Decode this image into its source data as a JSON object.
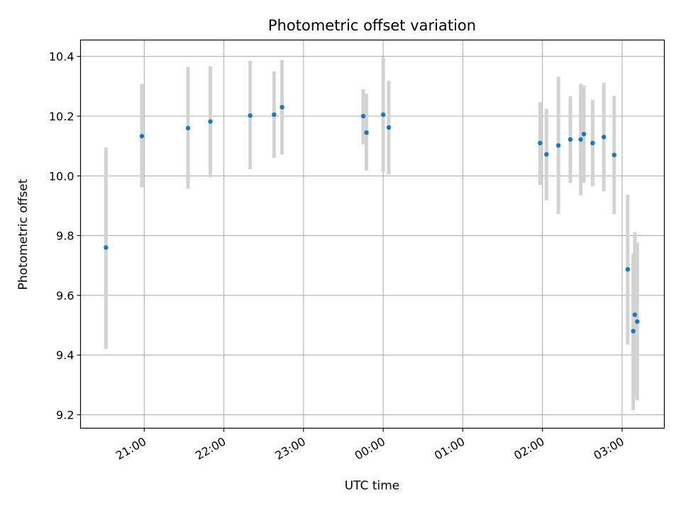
{
  "chart_data": {
    "type": "scatter",
    "title": "Photometric offset variation",
    "xlabel": "UTC time",
    "ylabel": "Photometric offset",
    "xlim_hours": [
      20.2,
      27.53
    ],
    "ylim": [
      9.155,
      10.455
    ],
    "x_ticks": [
      {
        "hour": 21,
        "label": "21:00"
      },
      {
        "hour": 22,
        "label": "22:00"
      },
      {
        "hour": 23,
        "label": "23:00"
      },
      {
        "hour": 24,
        "label": "00:00"
      },
      {
        "hour": 25,
        "label": "01:00"
      },
      {
        "hour": 26,
        "label": "02:00"
      },
      {
        "hour": 27,
        "label": "03:00"
      }
    ],
    "y_ticks": [
      {
        "value": 9.2,
        "label": "9.2"
      },
      {
        "value": 9.4,
        "label": "9.4"
      },
      {
        "value": 9.6,
        "label": "9.6"
      },
      {
        "value": 9.8,
        "label": "9.8"
      },
      {
        "value": 10.0,
        "label": "10.0"
      },
      {
        "value": 10.2,
        "label": "10.2"
      },
      {
        "value": 10.4,
        "label": "10.4"
      }
    ],
    "grid": true,
    "marker_color": "#1f77b4",
    "errorbar_color": "#d3d3d3",
    "points": [
      {
        "time": "20:31",
        "hour": 20.52,
        "y": 9.76,
        "yerr_low": 9.42,
        "yerr_high": 10.095
      },
      {
        "time": "20:58",
        "hour": 20.97,
        "y": 10.133,
        "yerr_low": 9.962,
        "yerr_high": 10.308
      },
      {
        "time": "21:33",
        "hour": 21.55,
        "y": 10.16,
        "yerr_low": 9.957,
        "yerr_high": 10.365
      },
      {
        "time": "21:50",
        "hour": 21.83,
        "y": 10.182,
        "yerr_low": 9.995,
        "yerr_high": 10.367
      },
      {
        "time": "22:20",
        "hour": 22.33,
        "y": 10.202,
        "yerr_low": 10.022,
        "yerr_high": 10.385
      },
      {
        "time": "22:38",
        "hour": 22.63,
        "y": 10.205,
        "yerr_low": 10.06,
        "yerr_high": 10.35
      },
      {
        "time": "22:44",
        "hour": 22.73,
        "y": 10.23,
        "yerr_low": 10.072,
        "yerr_high": 10.388
      },
      {
        "time": "23:45",
        "hour": 23.75,
        "y": 10.2,
        "yerr_low": 10.105,
        "yerr_high": 10.29
      },
      {
        "time": "23:47",
        "hour": 23.79,
        "y": 10.145,
        "yerr_low": 10.017,
        "yerr_high": 10.275
      },
      {
        "time": "00:00",
        "hour": 24.0,
        "y": 10.205,
        "yerr_low": 10.013,
        "yerr_high": 10.395
      },
      {
        "time": "00:04",
        "hour": 24.07,
        "y": 10.162,
        "yerr_low": 10.005,
        "yerr_high": 10.318
      },
      {
        "time": "01:58",
        "hour": 25.97,
        "y": 10.11,
        "yerr_low": 9.97,
        "yerr_high": 10.247
      },
      {
        "time": "02:03",
        "hour": 26.05,
        "y": 10.072,
        "yerr_low": 9.918,
        "yerr_high": 10.225
      },
      {
        "time": "02:12",
        "hour": 26.2,
        "y": 10.102,
        "yerr_low": 9.872,
        "yerr_high": 10.332
      },
      {
        "time": "02:21",
        "hour": 26.35,
        "y": 10.122,
        "yerr_low": 9.977,
        "yerr_high": 10.267
      },
      {
        "time": "02:29",
        "hour": 26.48,
        "y": 10.122,
        "yerr_low": 9.935,
        "yerr_high": 10.308
      },
      {
        "time": "02:31",
        "hour": 26.52,
        "y": 10.14,
        "yerr_low": 9.977,
        "yerr_high": 10.303
      },
      {
        "time": "02:38",
        "hour": 26.63,
        "y": 10.11,
        "yerr_low": 9.965,
        "yerr_high": 10.255
      },
      {
        "time": "02:46",
        "hour": 26.77,
        "y": 10.13,
        "yerr_low": 9.948,
        "yerr_high": 10.312
      },
      {
        "time": "02:54",
        "hour": 26.9,
        "y": 10.07,
        "yerr_low": 9.872,
        "yerr_high": 10.268
      },
      {
        "time": "03:04",
        "hour": 27.07,
        "y": 9.687,
        "yerr_low": 9.435,
        "yerr_high": 9.937
      },
      {
        "time": "03:08",
        "hour": 27.14,
        "y": 9.48,
        "yerr_low": 9.215,
        "yerr_high": 9.74
      },
      {
        "time": "03:10",
        "hour": 27.16,
        "y": 9.535,
        "yerr_low": 9.26,
        "yerr_high": 9.812
      },
      {
        "time": "03:11",
        "hour": 27.19,
        "y": 9.512,
        "yerr_low": 9.248,
        "yerr_high": 9.777
      }
    ]
  }
}
